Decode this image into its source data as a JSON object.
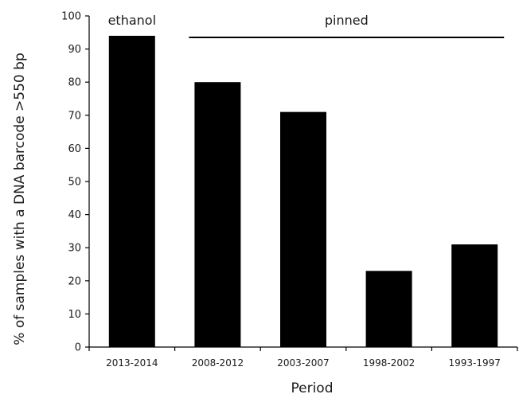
{
  "chart_data": {
    "type": "bar",
    "xlabel": "Period",
    "ylabel": "% of samples with a DNA barcode >550 bp",
    "ylim": [
      0,
      100
    ],
    "yticks": [
      0,
      10,
      20,
      30,
      40,
      50,
      60,
      70,
      80,
      90,
      100
    ],
    "categories": [
      "2013-2014",
      "2008-2012",
      "2003-2007",
      "1998-2002",
      "1993-1997"
    ],
    "values": [
      94,
      80,
      71,
      23,
      31
    ],
    "bar_color": "#000000",
    "grid": false,
    "annotations": [
      {
        "text": "ethanol",
        "applies_to": [
          "2013-2014"
        ]
      },
      {
        "text": "pinned",
        "applies_to": [
          "2008-2012",
          "2003-2007",
          "1998-2002",
          "1993-1997"
        ],
        "bracket": true
      }
    ]
  }
}
